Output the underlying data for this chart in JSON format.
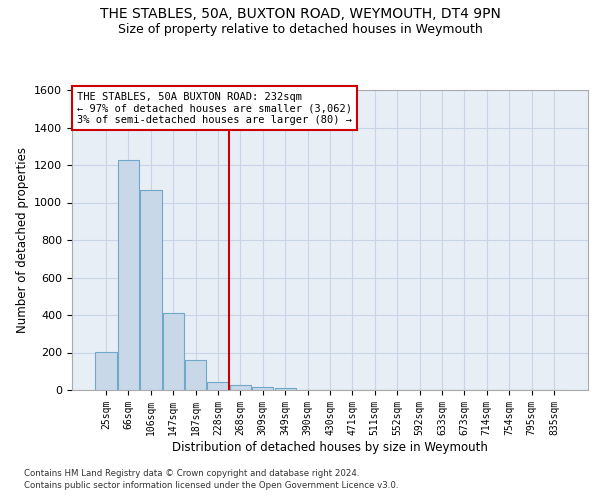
{
  "title_line1": "THE STABLES, 50A, BUXTON ROAD, WEYMOUTH, DT4 9PN",
  "title_line2": "Size of property relative to detached houses in Weymouth",
  "xlabel": "Distribution of detached houses by size in Weymouth",
  "ylabel": "Number of detached properties",
  "categories": [
    "25sqm",
    "66sqm",
    "106sqm",
    "147sqm",
    "187sqm",
    "228sqm",
    "268sqm",
    "309sqm",
    "349sqm",
    "390sqm",
    "430sqm",
    "471sqm",
    "511sqm",
    "552sqm",
    "592sqm",
    "633sqm",
    "673sqm",
    "714sqm",
    "754sqm",
    "795sqm",
    "835sqm"
  ],
  "values": [
    205,
    1225,
    1065,
    410,
    160,
    45,
    25,
    15,
    10,
    0,
    0,
    0,
    0,
    0,
    0,
    0,
    0,
    0,
    0,
    0,
    0
  ],
  "bar_color": "#c8d8e8",
  "bar_edgecolor": "#6fa8c8",
  "bar_linewidth": 0.8,
  "vline_x": 5.5,
  "vline_color": "#cc0000",
  "annotation_text": "THE STABLES, 50A BUXTON ROAD: 232sqm\n← 97% of detached houses are smaller (3,062)\n3% of semi-detached houses are larger (80) →",
  "annotation_box_edgecolor": "#cc0000",
  "annotation_box_facecolor": "#ffffff",
  "ylim": [
    0,
    1600
  ],
  "yticks": [
    0,
    200,
    400,
    600,
    800,
    1000,
    1200,
    1400,
    1600
  ],
  "grid_color": "#c8d4e8",
  "bg_color": "#e8eef6",
  "title_fontsize": 10,
  "subtitle_fontsize": 9,
  "footnote1": "Contains HM Land Registry data © Crown copyright and database right 2024.",
  "footnote2": "Contains public sector information licensed under the Open Government Licence v3.0."
}
